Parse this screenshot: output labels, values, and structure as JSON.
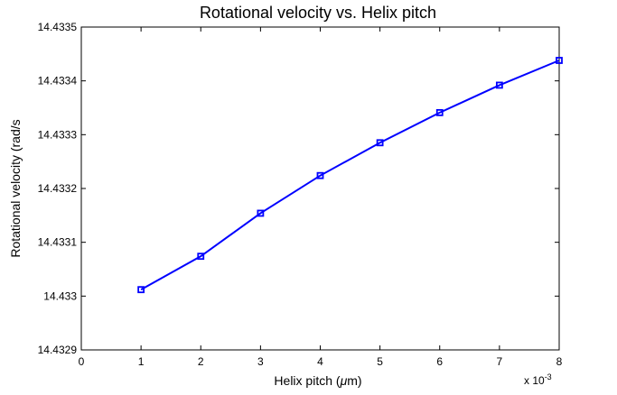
{
  "chart_data": {
    "type": "line",
    "title": "Rotational velocity vs. Helix pitch",
    "xlabel": "Helix pitch (",
    "xlabel_mu": "μ",
    "xlabel_unit": "m)",
    "ylabel": "Rotational velocity (rad/s",
    "x_scale_base": "x 10",
    "x_scale_exp": "-3",
    "xlim": [
      0,
      8
    ],
    "ylim": [
      14.4329,
      14.4335
    ],
    "xticks": [
      "0",
      "1",
      "2",
      "3",
      "4",
      "5",
      "6",
      "7",
      "8"
    ],
    "yticks": [
      "14.4329",
      "14.433",
      "14.4331",
      "14.4332",
      "14.4333",
      "14.4334",
      "14.4335"
    ],
    "grid": false,
    "line_color": "#0000ff",
    "marker": "square",
    "series": [
      {
        "x": [
          1,
          2,
          3,
          4,
          5,
          6,
          7,
          8
        ],
        "y": [
          14.433012,
          14.433074,
          14.433154,
          14.433224,
          14.433285,
          14.433341,
          14.433392,
          14.433438
        ]
      }
    ]
  }
}
